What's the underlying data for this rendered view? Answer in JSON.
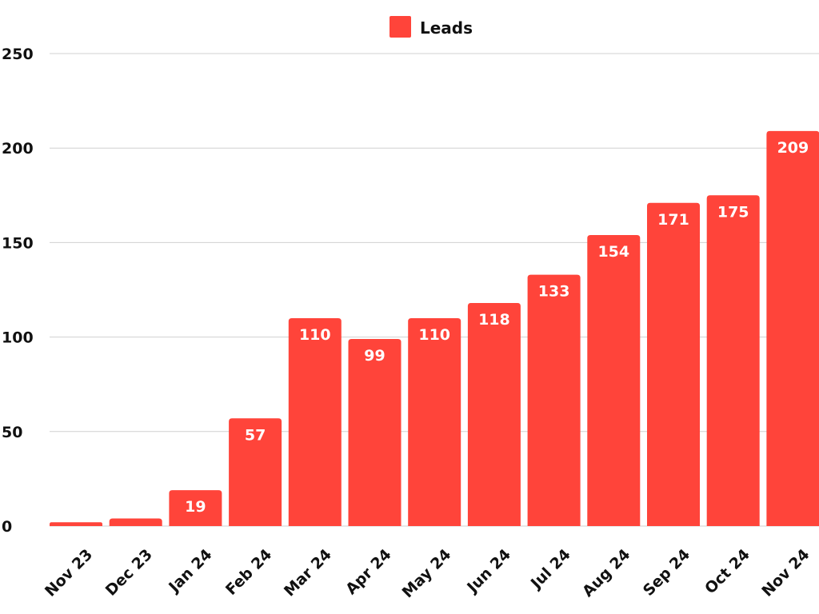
{
  "chart_data": {
    "type": "bar",
    "categories": [
      "Nov 23",
      "Dec 23",
      "Jan 24",
      "Feb 24",
      "Mar 24",
      "Apr 24",
      "May 24",
      "Jun 24",
      "Jul 24",
      "Aug 24",
      "Sep 24",
      "Oct 24",
      "Nov 24"
    ],
    "series": [
      {
        "name": "Leads",
        "values": [
          2,
          4,
          19,
          57,
          110,
          99,
          110,
          118,
          133,
          154,
          171,
          175,
          209
        ],
        "labels": [
          "",
          "",
          "19",
          "57",
          "110",
          "99",
          "110",
          "118",
          "133",
          "154",
          "171",
          "175",
          "209"
        ]
      }
    ],
    "yticks": [
      "0",
      "50",
      "100",
      "150",
      "200",
      "250"
    ],
    "ylim": [
      0,
      250
    ],
    "grid": true,
    "legend_position": "top-center",
    "xlabel": "",
    "ylabel": "",
    "title": ""
  },
  "colors": {
    "bar": "#ff443a",
    "grid": "#d0d0d0",
    "text": "#111111",
    "label": "#ffffff"
  }
}
